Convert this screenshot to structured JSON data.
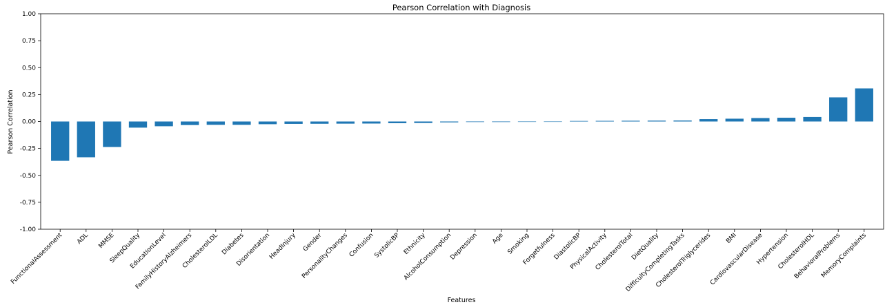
{
  "chart_data": {
    "type": "bar",
    "title": "Pearson Correlation with Diagnosis",
    "xlabel": "Features",
    "ylabel": "Pearson Correlation",
    "ylim": [
      -1.0,
      1.0
    ],
    "yticks": [
      "-1.00",
      "-0.75",
      "-0.50",
      "-0.25",
      "0.00",
      "0.25",
      "0.50",
      "0.75",
      "1.00"
    ],
    "grid": false,
    "bar_color": "#1f77b4",
    "categories": [
      "FunctionalAssessment",
      "ADL",
      "MMSE",
      "SleepQuality",
      "EducationLevel",
      "FamilyHistoryAlzheimers",
      "CholesterolLDL",
      "Diabetes",
      "Disorientation",
      "HeadInjury",
      "Gender",
      "PersonalityChanges",
      "Confusion",
      "SystolicBP",
      "Ethnicity",
      "AlcoholConsumption",
      "Depression",
      "Age",
      "Smoking",
      "Forgetfulness",
      "DiastolicBP",
      "PhysicalActivity",
      "CholesterolTotal",
      "DietQuality",
      "DifficultyCompletingTasks",
      "CholesterolTriglycerides",
      "BMI",
      "CardiovascularDisease",
      "Hypertension",
      "CholesterolHDL",
      "BehavioralProblems",
      "MemoryComplaints"
    ],
    "values": [
      -0.365,
      -0.332,
      -0.237,
      -0.057,
      -0.044,
      -0.033,
      -0.031,
      -0.031,
      -0.025,
      -0.022,
      -0.021,
      -0.02,
      -0.019,
      -0.016,
      -0.014,
      -0.008,
      -0.005,
      -0.005,
      -0.004,
      -0.0,
      0.005,
      0.006,
      0.007,
      0.008,
      0.009,
      0.022,
      0.026,
      0.032,
      0.035,
      0.042,
      0.224,
      0.307
    ]
  }
}
